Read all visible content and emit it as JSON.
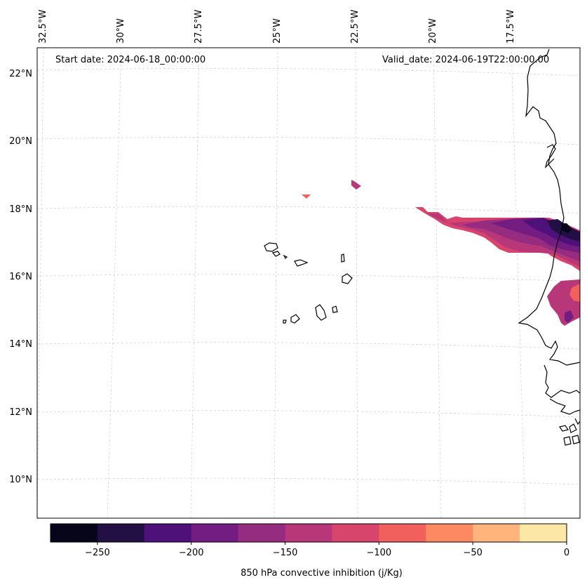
{
  "header": {
    "start_date": "Start date: 2024-06-18_00:00:00",
    "valid_date": "Valid_date: 2024-06-19T22:00:00.00"
  },
  "axes": {
    "longitude_labels": [
      "32.5°W",
      "30°W",
      "27.5°W",
      "25°W",
      "22.5°W",
      "20°W",
      "17.5°W"
    ],
    "latitude_labels": [
      "22°N",
      "20°N",
      "18°N",
      "16°N",
      "14°N",
      "12°N",
      "10°N"
    ]
  },
  "colorbar": {
    "label": "850 hPa convective inhibition (j/Kg)",
    "tick_labels": [
      "−250",
      "−200",
      "−150",
      "−100",
      "−50",
      "0"
    ],
    "range": [
      -275,
      0
    ],
    "levels": [
      -275,
      -250,
      -225,
      -200,
      -175,
      -150,
      -125,
      -100,
      -75,
      -50,
      -25,
      0
    ],
    "colors": [
      "#06051a",
      "#221045",
      "#4e1179",
      "#731c81",
      "#952c80",
      "#b73779",
      "#d8456c",
      "#f1605d",
      "#fc8961",
      "#feb47b",
      "#fde7a6"
    ]
  },
  "map_colors": {
    "coast": "#000000",
    "grid": "#d0d0d0"
  }
}
